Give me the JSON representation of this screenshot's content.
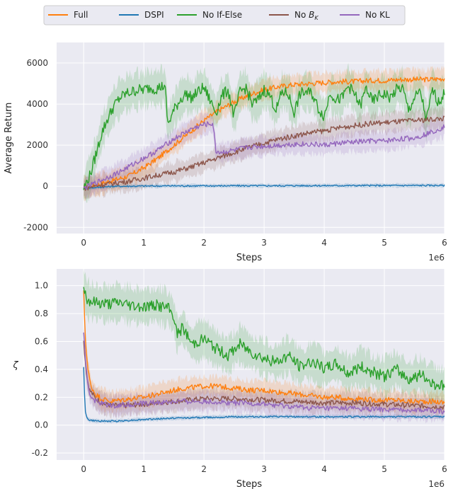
{
  "chart_data": [
    {
      "type": "line",
      "title": "",
      "xlabel": "Steps",
      "ylabel": "Average Return",
      "x_multiplier_label": "1e6",
      "xlim": [
        -0.45,
        6
      ],
      "ylim": [
        -2300,
        7000
      ],
      "xticks": [
        0,
        1,
        2,
        3,
        4,
        5,
        6
      ],
      "yticks": [
        -2000,
        0,
        2000,
        4000,
        6000
      ],
      "legend": {
        "placement": "top",
        "entries": [
          "Full",
          "DSPI",
          "No If-Else",
          "No B_K",
          "No KL"
        ]
      },
      "series": [
        {
          "name": "Full",
          "color": "#ff7f0e",
          "x": [
            0,
            0.25,
            0.5,
            0.75,
            1,
            1.25,
            1.5,
            1.75,
            2,
            2.25,
            2.5,
            2.75,
            3,
            3.25,
            3.5,
            3.75,
            4,
            4.25,
            4.5,
            4.75,
            5,
            5.25,
            5.5,
            5.75,
            6
          ],
          "y": [
            -100,
            100,
            300,
            500,
            900,
            1400,
            2000,
            2600,
            3200,
            3700,
            4100,
            4450,
            4700,
            4850,
            4950,
            5000,
            5050,
            5100,
            5100,
            5150,
            5150,
            5200,
            5200,
            5200,
            5250
          ]
        },
        {
          "name": "DSPI",
          "color": "#1f77b4",
          "x": [
            0,
            0.25,
            0.5,
            1,
            1.5,
            2,
            2.5,
            3,
            3.5,
            4,
            4.5,
            5,
            5.5,
            6
          ],
          "y": [
            -100,
            -50,
            0,
            10,
            20,
            20,
            25,
            25,
            30,
            30,
            35,
            35,
            40,
            40
          ]
        },
        {
          "name": "No If-Else",
          "color": "#2ca02c",
          "x": [
            0,
            0.1,
            0.2,
            0.3,
            0.4,
            0.5,
            0.6,
            0.7,
            0.8,
            0.9,
            1,
            1.1,
            1.2,
            1.35,
            1.4,
            1.5,
            1.6,
            1.7,
            1.8,
            1.9,
            2,
            2.1,
            2.2,
            2.3,
            2.4,
            2.5,
            2.6,
            2.7,
            2.8,
            2.9,
            3,
            3.1,
            3.2,
            3.3,
            3.4,
            3.5,
            3.6,
            3.7,
            3.8,
            3.9,
            4,
            4.1,
            4.2,
            4.3,
            4.4,
            4.5,
            4.6,
            4.7,
            4.8,
            4.9,
            5,
            5.1,
            5.2,
            5.3,
            5.4,
            5.5,
            5.6,
            5.7,
            5.8,
            5.9,
            6
          ],
          "y": [
            -100,
            500,
            1500,
            2600,
            3300,
            3900,
            4300,
            4500,
            4600,
            4700,
            4700,
            4800,
            4750,
            4900,
            3000,
            3700,
            4200,
            4500,
            4300,
            4600,
            4800,
            4200,
            3600,
            4400,
            4700,
            3400,
            4600,
            4800,
            4000,
            4200,
            4700,
            4400,
            3700,
            4600,
            4500,
            3600,
            4500,
            4600,
            4500,
            3800,
            3400,
            4600,
            4200,
            4300,
            4900,
            4500,
            3900,
            4800,
            4100,
            4400,
            4500,
            4300,
            4700,
            4800,
            3700,
            4300,
            4600,
            3200,
            4700,
            4100,
            4500
          ]
        },
        {
          "name": "No B_K",
          "color": "#8c564b",
          "x": [
            0,
            0.25,
            0.5,
            0.75,
            1,
            1.25,
            1.5,
            1.75,
            2,
            2.25,
            2.5,
            2.75,
            3,
            3.25,
            3.5,
            3.75,
            4,
            4.25,
            4.5,
            4.75,
            5,
            5.25,
            5.5,
            5.75,
            6
          ],
          "y": [
            -100,
            50,
            150,
            250,
            400,
            550,
            700,
            900,
            1150,
            1400,
            1650,
            1900,
            2100,
            2300,
            2450,
            2600,
            2700,
            2850,
            2950,
            3050,
            3100,
            3150,
            3200,
            3250,
            3300
          ]
        },
        {
          "name": "No KL",
          "color": "#9467bd",
          "x": [
            0,
            0.3,
            0.6,
            0.9,
            1.2,
            1.5,
            1.8,
            2,
            2.15,
            2.2,
            2.3,
            2.5,
            2.75,
            3,
            3.25,
            3.5,
            3.75,
            4,
            4.25,
            4.5,
            4.75,
            5,
            5.25,
            5.5,
            5.75,
            6
          ],
          "y": [
            -100,
            300,
            700,
            1200,
            1700,
            2300,
            2800,
            3000,
            3050,
            1700,
            1650,
            1750,
            1900,
            1950,
            2000,
            2050,
            2050,
            2000,
            2100,
            2150,
            2200,
            2200,
            2300,
            2350,
            2600,
            2900
          ]
        }
      ]
    },
    {
      "type": "line",
      "title": "",
      "xlabel": "Steps",
      "ylabel": "ζ",
      "x_multiplier_label": "1e6",
      "xlim": [
        -0.45,
        6
      ],
      "ylim": [
        -0.25,
        1.12
      ],
      "xticks": [
        0,
        1,
        2,
        3,
        4,
        5,
        6
      ],
      "yticks": [
        -0.2,
        0.0,
        0.2,
        0.4,
        0.6,
        0.8,
        1.0
      ],
      "series": [
        {
          "name": "Full",
          "color": "#ff7f0e",
          "x": [
            0,
            0.03,
            0.07,
            0.12,
            0.2,
            0.3,
            0.45,
            0.6,
            0.8,
            1,
            1.2,
            1.4,
            1.6,
            1.8,
            2,
            2.2,
            2.4,
            2.6,
            2.8,
            3,
            3.2,
            3.4,
            3.6,
            3.8,
            4,
            4.2,
            4.4,
            4.6,
            4.8,
            5,
            5.2,
            5.4,
            5.6,
            5.8,
            6
          ],
          "y": [
            0.95,
            0.6,
            0.4,
            0.28,
            0.22,
            0.19,
            0.17,
            0.18,
            0.19,
            0.2,
            0.22,
            0.24,
            0.26,
            0.27,
            0.28,
            0.28,
            0.27,
            0.26,
            0.25,
            0.25,
            0.24,
            0.23,
            0.22,
            0.21,
            0.2,
            0.2,
            0.19,
            0.19,
            0.18,
            0.18,
            0.18,
            0.17,
            0.17,
            0.17,
            0.16
          ]
        },
        {
          "name": "DSPI",
          "color": "#1f77b4",
          "x": [
            0,
            0.01,
            0.02,
            0.05,
            0.1,
            0.2,
            0.4,
            0.6,
            1,
            1.5,
            2,
            2.5,
            3,
            3.5,
            4,
            4.5,
            5,
            5.5,
            6
          ],
          "y": [
            0.42,
            0.3,
            0.12,
            0.05,
            0.035,
            0.03,
            0.028,
            0.03,
            0.04,
            0.05,
            0.055,
            0.06,
            0.06,
            0.06,
            0.06,
            0.06,
            0.06,
            0.06,
            0.06
          ]
        },
        {
          "name": "No If-Else",
          "color": "#2ca02c",
          "x": [
            0,
            0.05,
            0.2,
            0.4,
            0.6,
            0.8,
            1,
            1.2,
            1.4,
            1.5,
            1.55,
            1.65,
            1.8,
            2,
            2.2,
            2.4,
            2.6,
            2.8,
            3,
            3.2,
            3.4,
            3.6,
            3.8,
            4,
            4.2,
            4.4,
            4.6,
            4.8,
            5,
            5.2,
            5.4,
            5.6,
            5.8,
            6
          ],
          "y": [
            1.0,
            0.9,
            0.88,
            0.87,
            0.88,
            0.86,
            0.85,
            0.86,
            0.84,
            0.78,
            0.65,
            0.7,
            0.58,
            0.62,
            0.55,
            0.5,
            0.58,
            0.52,
            0.48,
            0.45,
            0.5,
            0.42,
            0.46,
            0.4,
            0.44,
            0.37,
            0.42,
            0.38,
            0.35,
            0.4,
            0.33,
            0.36,
            0.3,
            0.28
          ]
        },
        {
          "name": "No B_K",
          "color": "#8c564b",
          "x": [
            0,
            0.05,
            0.1,
            0.2,
            0.35,
            0.5,
            0.7,
            1,
            1.5,
            2,
            2.5,
            3,
            3.5,
            4,
            4.5,
            5,
            5.5,
            6
          ],
          "y": [
            0.6,
            0.35,
            0.25,
            0.19,
            0.15,
            0.14,
            0.14,
            0.15,
            0.17,
            0.19,
            0.19,
            0.18,
            0.17,
            0.16,
            0.16,
            0.15,
            0.14,
            0.13
          ]
        },
        {
          "name": "No KL",
          "color": "#9467bd",
          "x": [
            0,
            0.05,
            0.1,
            0.2,
            0.35,
            0.5,
            0.8,
            1.2,
            1.6,
            2,
            2.5,
            3,
            3.5,
            4,
            4.5,
            5,
            5.5,
            6
          ],
          "y": [
            0.65,
            0.35,
            0.22,
            0.17,
            0.15,
            0.14,
            0.15,
            0.16,
            0.17,
            0.17,
            0.16,
            0.15,
            0.13,
            0.12,
            0.12,
            0.11,
            0.11,
            0.1
          ]
        }
      ]
    }
  ]
}
